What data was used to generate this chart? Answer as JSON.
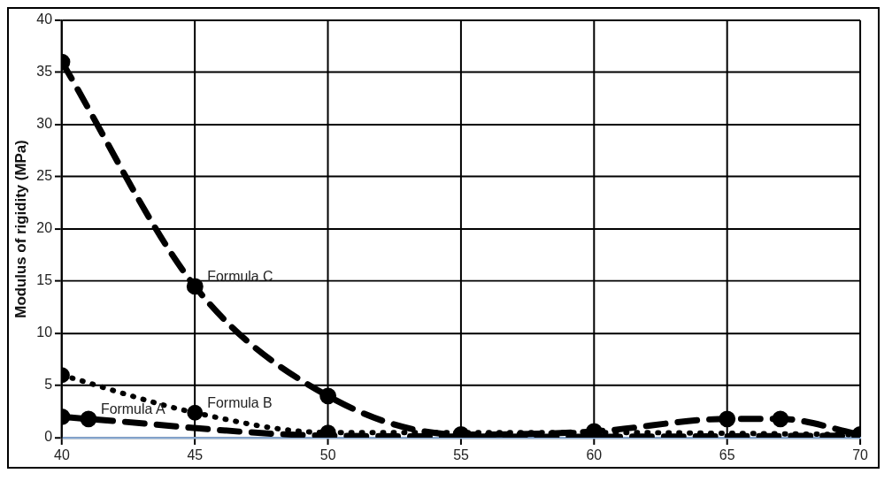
{
  "chart_data": {
    "type": "line",
    "ylabel": "Modulus of rigidity (MPa)",
    "xlim": [
      40,
      70
    ],
    "xticks": [
      40,
      45,
      50,
      55,
      60,
      65,
      70
    ],
    "ylim": [
      0,
      40
    ],
    "yticks": [
      0,
      5,
      10,
      15,
      20,
      25,
      30,
      35,
      40
    ],
    "grid": true,
    "legend": false,
    "marker": "circle",
    "series": [
      {
        "name": "Formula C",
        "color": "#000000",
        "line_style": "dashed",
        "x": [
          40,
          45,
          50,
          55,
          60,
          65,
          67,
          70
        ],
        "values": [
          36,
          14.5,
          4,
          0.3,
          0.6,
          1.8,
          1.8,
          0.3
        ]
      },
      {
        "name": "Formula B",
        "color": "#000000",
        "line_style": "dotted",
        "x": [
          40,
          45,
          50,
          60,
          70
        ],
        "values": [
          6,
          2.4,
          0.5,
          0.5,
          0.3
        ]
      },
      {
        "name": "Formula A",
        "color": "#000000",
        "line_style": "dashed",
        "x": [
          40,
          41,
          50,
          60,
          70
        ],
        "values": [
          2,
          1.8,
          0.2,
          0.1,
          0.2
        ]
      }
    ]
  }
}
